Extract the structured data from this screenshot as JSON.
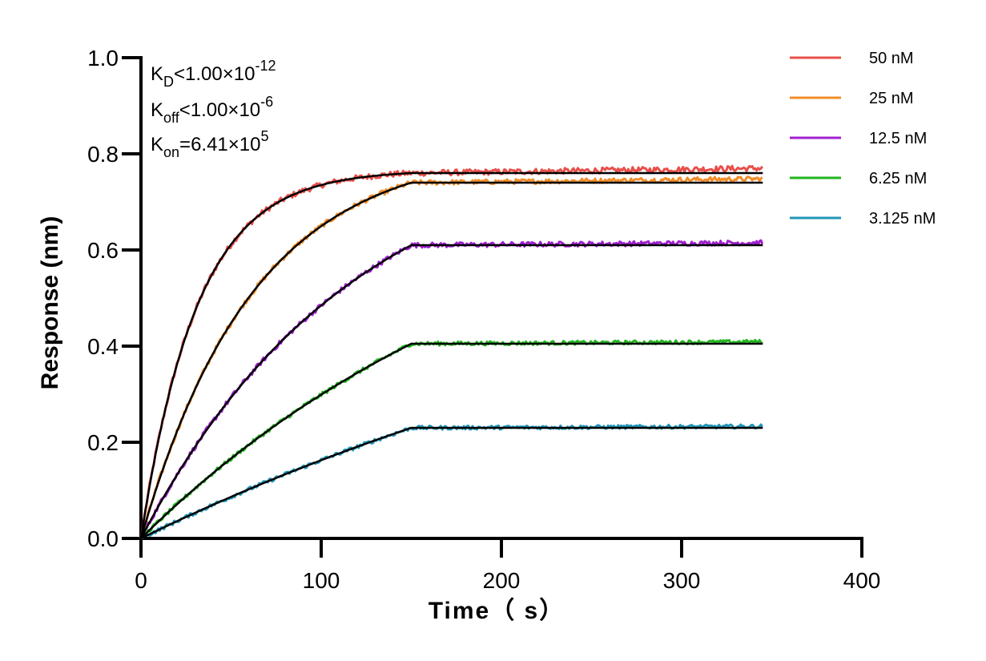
{
  "chart_data": {
    "type": "line",
    "title": "",
    "xlabel": "Time（ s）",
    "ylabel": "Response (nm)",
    "xlim": [
      0,
      400
    ],
    "ylim": [
      0,
      1.0
    ],
    "x_ticks": [
      0,
      100,
      200,
      300,
      400
    ],
    "x_tick_labels": [
      "0",
      "100",
      "200",
      "300",
      "400"
    ],
    "y_ticks": [
      0,
      0.2,
      0.4,
      0.6,
      0.8,
      1.0
    ],
    "y_tick_labels": [
      "0.0",
      "0.2",
      "0.4",
      "0.6",
      "0.8",
      "1.0"
    ],
    "grid": false,
    "legend_position": "top-right outside",
    "association_end_time": 150,
    "end_time": 345,
    "annotations": {
      "kd": {
        "main": "K",
        "sub": "D",
        "rel": "<",
        "mant": "1.00×10",
        "exp": "-12"
      },
      "koff": {
        "main": "K",
        "sub": "off",
        "rel": "<",
        "mant": "1.00×10",
        "exp": "-6"
      },
      "kon": {
        "main": "K",
        "sub": "on",
        "rel": "=",
        "mant": "6.41×10",
        "exp": "5"
      }
    },
    "fit_color": "#000000",
    "series": [
      {
        "name": "50 nM",
        "color": "#E8504A",
        "kobs": 0.032,
        "plateau": 0.76,
        "noise": 0.006,
        "drift": 0.01
      },
      {
        "name": "25 nM",
        "color": "#F28C28",
        "kobs": 0.016,
        "plateau": 0.74,
        "noise": 0.005,
        "drift": 0.008
      },
      {
        "name": "12.5 nM",
        "color": "#A020D0",
        "kobs": 0.0085,
        "plateau": 0.61,
        "noise": 0.005,
        "drift": 0.005
      },
      {
        "name": "6.25 nM",
        "color": "#22B51F",
        "kobs": 0.0045,
        "plateau": 0.405,
        "noise": 0.004,
        "drift": 0.004
      },
      {
        "name": "3.125 nM",
        "color": "#2196B8",
        "kobs": 0.0025,
        "plateau": 0.23,
        "noise": 0.004,
        "drift": 0.003
      }
    ]
  }
}
